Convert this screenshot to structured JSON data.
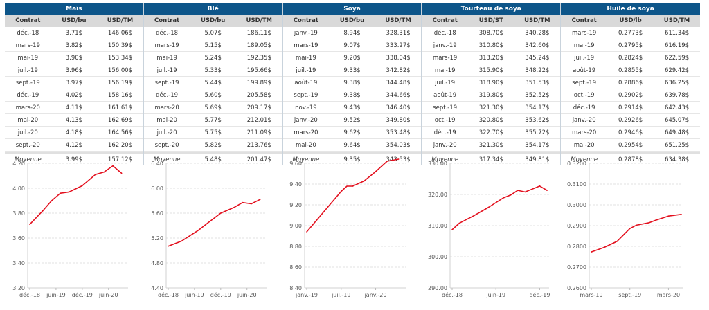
{
  "tables": [
    {
      "title": "Maïs",
      "headers": [
        "Contrat",
        "USD/bu",
        "USD/TM"
      ],
      "rows": [
        [
          "déc.-18",
          "3.71$",
          "146.06$"
        ],
        [
          "mars-19",
          "3.82$",
          "150.39$"
        ],
        [
          "mai-19",
          "3.90$",
          "153.34$"
        ],
        [
          "juil.-19",
          "3.96$",
          "156.00$"
        ],
        [
          "sept.-19",
          "3.97$",
          "156.19$"
        ],
        [
          "déc.-19",
          "4.02$",
          "158.16$"
        ],
        [
          "mars-20",
          "4.11$",
          "161.61$"
        ],
        [
          "mai-20",
          "4.13$",
          "162.69$"
        ],
        [
          "juil.-20",
          "4.18$",
          "164.56$"
        ],
        [
          "sept.-20",
          "4.12$",
          "162.20$"
        ]
      ],
      "average": [
        "Moyenne",
        "3.99$",
        "157.12$"
      ]
    },
    {
      "title": "Blé",
      "headers": [
        "Contrat",
        "USD/bu",
        "USD/TM"
      ],
      "rows": [
        [
          "déc.-18",
          "5.07$",
          "186.11$"
        ],
        [
          "mars-19",
          "5.15$",
          "189.05$"
        ],
        [
          "mai-19",
          "5.24$",
          "192.35$"
        ],
        [
          "juil.-19",
          "5.33$",
          "195.66$"
        ],
        [
          "sept.-19",
          "5.44$",
          "199.89$"
        ],
        [
          "déc.-19",
          "5.60$",
          "205.58$"
        ],
        [
          "mars-20",
          "5.69$",
          "209.17$"
        ],
        [
          "mai-20",
          "5.77$",
          "212.01$"
        ],
        [
          "juil.-20",
          "5.75$",
          "211.09$"
        ],
        [
          "sept.-20",
          "5.82$",
          "213.76$"
        ]
      ],
      "average": [
        "Moyenne",
        "5.48$",
        "201.47$"
      ]
    },
    {
      "title": "Soya",
      "headers": [
        "Contrat",
        "USD/bu",
        "USD/TM"
      ],
      "rows": [
        [
          "janv.-19",
          "8.94$",
          "328.31$"
        ],
        [
          "mars-19",
          "9.07$",
          "333.27$"
        ],
        [
          "mai-19",
          "9.20$",
          "338.04$"
        ],
        [
          "juil.-19",
          "9.33$",
          "342.82$"
        ],
        [
          "août-19",
          "9.38$",
          "344.48$"
        ],
        [
          "sept.-19",
          "9.38$",
          "344.66$"
        ],
        [
          "nov.-19",
          "9.43$",
          "346.40$"
        ],
        [
          "janv.-20",
          "9.52$",
          "349.80$"
        ],
        [
          "mars-20",
          "9.62$",
          "353.48$"
        ],
        [
          "mai-20",
          "9.64$",
          "354.03$"
        ]
      ],
      "average": [
        "Moyenne",
        "9.35$",
        "343.53$"
      ]
    },
    {
      "title": "Tourteau de soya",
      "headers": [
        "Contrat",
        "USD/ST",
        "USD/TM"
      ],
      "rows": [
        [
          "déc.-18",
          "308.70$",
          "340.28$"
        ],
        [
          "janv.-19",
          "310.80$",
          "342.60$"
        ],
        [
          "mars-19",
          "313.20$",
          "345.24$"
        ],
        [
          "mai-19",
          "315.90$",
          "348.22$"
        ],
        [
          "juil.-19",
          "318.90$",
          "351.53$"
        ],
        [
          "août-19",
          "319.80$",
          "352.52$"
        ],
        [
          "sept.-19",
          "321.30$",
          "354.17$"
        ],
        [
          "oct.-19",
          "320.80$",
          "353.62$"
        ],
        [
          "déc.-19",
          "322.70$",
          "355.72$"
        ],
        [
          "janv.-20",
          "321.30$",
          "354.17$"
        ]
      ],
      "average": [
        "Moyenne",
        "317.34$",
        "349.81$"
      ]
    },
    {
      "title": "Huile de soya",
      "headers": [
        "Contrat",
        "USD/lb",
        "USD/TM"
      ],
      "rows": [
        [
          "mars-19",
          "0.2773$",
          "611.34$"
        ],
        [
          "mai-19",
          "0.2795$",
          "616.19$"
        ],
        [
          "juil.-19",
          "0.2824$",
          "622.59$"
        ],
        [
          "août-19",
          "0.2855$",
          "629.42$"
        ],
        [
          "sept.-19",
          "0.2886$",
          "636.25$"
        ],
        [
          "oct.-19",
          "0.2902$",
          "639.78$"
        ],
        [
          "déc.-19",
          "0.2914$",
          "642.43$"
        ],
        [
          "janv.-20",
          "0.2926$",
          "645.07$"
        ],
        [
          "mars-20",
          "0.2946$",
          "649.48$"
        ],
        [
          "mai-20",
          "0.2954$",
          "651.25$"
        ]
      ],
      "average": [
        "Moyenne",
        "0.2878$",
        "634.38$"
      ]
    }
  ],
  "colors": {
    "header_bg": "#0d5589",
    "subheader_bg": "#d9d9d9",
    "line": "#e3101e",
    "grid": "#d8d8d8"
  },
  "chart_data": [
    {
      "type": "line",
      "title": "Maïs",
      "ylabel": "USD/bu",
      "x": [
        "2018-12",
        "2019-03",
        "2019-05",
        "2019-07",
        "2019-09",
        "2019-12",
        "2020-03",
        "2020-05",
        "2020-07",
        "2020-09"
      ],
      "values": [
        3.71,
        3.82,
        3.9,
        3.96,
        3.97,
        4.02,
        4.11,
        4.13,
        4.18,
        4.12
      ],
      "ylim": [
        3.2,
        4.2
      ],
      "yticks": [
        "3.20",
        "3.40",
        "3.60",
        "3.80",
        "4.00",
        "4.20"
      ],
      "xlim": [
        "2018-12",
        "2020-10"
      ],
      "xticks": [
        {
          "at": "2018-12",
          "label": "déc.-18"
        },
        {
          "at": "2019-06",
          "label": "juin-19"
        },
        {
          "at": "2019-12",
          "label": "déc.-19"
        },
        {
          "at": "2020-06",
          "label": "juin-20"
        }
      ],
      "grid": true
    },
    {
      "type": "line",
      "title": "Blé",
      "ylabel": "USD/bu",
      "x": [
        "2018-12",
        "2019-03",
        "2019-05",
        "2019-07",
        "2019-09",
        "2019-12",
        "2020-03",
        "2020-05",
        "2020-07",
        "2020-09"
      ],
      "values": [
        5.07,
        5.15,
        5.24,
        5.33,
        5.44,
        5.6,
        5.69,
        5.77,
        5.75,
        5.82
      ],
      "ylim": [
        4.4,
        6.4
      ],
      "yticks": [
        "4.40",
        "4.80",
        "5.20",
        "5.60",
        "6.00",
        "6.40"
      ],
      "xlim": [
        "2018-12",
        "2020-10"
      ],
      "xticks": [
        {
          "at": "2018-12",
          "label": "déc.-18"
        },
        {
          "at": "2019-06",
          "label": "juin-19"
        },
        {
          "at": "2019-12",
          "label": "déc.-19"
        },
        {
          "at": "2020-06",
          "label": "juin-20"
        }
      ],
      "grid": true
    },
    {
      "type": "line",
      "title": "Soya",
      "ylabel": "USD/bu",
      "x": [
        "2019-01",
        "2019-03",
        "2019-05",
        "2019-07",
        "2019-08",
        "2019-09",
        "2019-11",
        "2020-01",
        "2020-03",
        "2020-05"
      ],
      "values": [
        8.94,
        9.07,
        9.2,
        9.33,
        9.38,
        9.38,
        9.43,
        9.52,
        9.62,
        9.64
      ],
      "ylim": [
        8.4,
        9.6
      ],
      "yticks": [
        "8.40",
        "8.60",
        "8.80",
        "9.00",
        "9.20",
        "9.40",
        "9.60"
      ],
      "xlim": [
        "2019-01",
        "2020-06"
      ],
      "xticks": [
        {
          "at": "2019-01",
          "label": "janv.-19"
        },
        {
          "at": "2019-07",
          "label": "juil.-19"
        },
        {
          "at": "2020-01",
          "label": "janv.-20"
        }
      ],
      "grid": true
    },
    {
      "type": "line",
      "title": "Tourteau de soya",
      "ylabel": "USD/ST",
      "x": [
        "2018-12",
        "2019-01",
        "2019-03",
        "2019-05",
        "2019-07",
        "2019-08",
        "2019-09",
        "2019-10",
        "2019-12",
        "2020-01"
      ],
      "values": [
        308.7,
        310.8,
        313.2,
        315.9,
        318.9,
        319.8,
        321.3,
        320.8,
        322.7,
        321.3
      ],
      "ylim": [
        290.0,
        330.0
      ],
      "yticks": [
        "290.00",
        "300.00",
        "310.00",
        "320.00",
        "330.00"
      ],
      "xlim": [
        "2018-12",
        "2020-01"
      ],
      "xticks": [
        {
          "at": "2018-12",
          "label": "déc.-18"
        },
        {
          "at": "2019-06",
          "label": "juin-19"
        },
        {
          "at": "2019-12",
          "label": "déc.-19"
        }
      ],
      "grid": true
    },
    {
      "type": "line",
      "title": "Huile de soya",
      "ylabel": "USD/lb",
      "x": [
        "2019-03",
        "2019-05",
        "2019-07",
        "2019-08",
        "2019-09",
        "2019-10",
        "2019-12",
        "2020-01",
        "2020-03",
        "2020-05"
      ],
      "values": [
        0.2773,
        0.2795,
        0.2824,
        0.2855,
        0.2886,
        0.2902,
        0.2914,
        0.2926,
        0.2946,
        0.2954
      ],
      "ylim": [
        0.26,
        0.32
      ],
      "yticks": [
        "0.2600",
        "0.2700",
        "0.2800",
        "0.2900",
        "0.3000",
        "0.3100",
        "0.3200"
      ],
      "xlim": [
        "2019-03",
        "2020-05"
      ],
      "xticks": [
        {
          "at": "2019-03",
          "label": "mars-19"
        },
        {
          "at": "2019-09",
          "label": "sept.-19"
        },
        {
          "at": "2020-03",
          "label": "mars-20"
        }
      ],
      "grid": true
    }
  ]
}
